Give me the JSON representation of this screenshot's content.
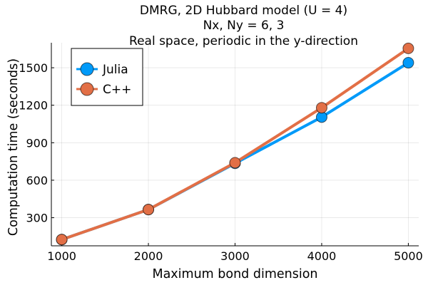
{
  "chart_data": {
    "type": "line",
    "title_lines": [
      "DMRG, 2D Hubbard model (U = 4)",
      "Nx, Ny = 6, 3",
      "Real space, periodic in the y-direction"
    ],
    "xlabel": "Maximum bond dimension",
    "ylabel": "Computation time (seconds)",
    "x": [
      1000,
      2000,
      3000,
      4000,
      5000
    ],
    "xticks": [
      1000,
      2000,
      3000,
      4000,
      5000
    ],
    "yticks": [
      300,
      600,
      900,
      1200,
      1500
    ],
    "xlim": [
      880,
      5120
    ],
    "ylim": [
      75,
      1700
    ],
    "grid": true,
    "legend_position": "top-left",
    "series": [
      {
        "name": "Julia",
        "color": "#009AF9",
        "values": [
          125,
          365,
          735,
          1105,
          1540
        ]
      },
      {
        "name": "C++",
        "color": "#E26F46",
        "values": [
          125,
          365,
          740,
          1180,
          1655
        ]
      }
    ]
  }
}
